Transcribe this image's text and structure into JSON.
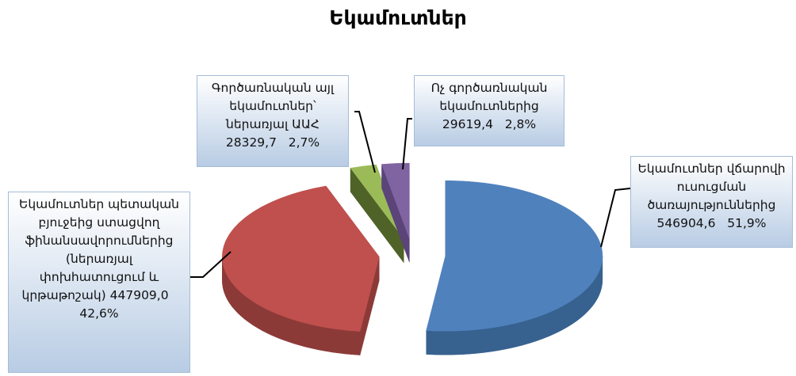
{
  "chart_data": {
    "type": "pie3d",
    "title": "Եկամուտներ",
    "names": [
      "Եկամուտներ վճարովի ուսուցման ծառայություններից",
      "Եկամուտներ պետական բյուջեից ստացվող ֆինանսավորումներից (ներառյալ փոխհատուցում և կրթաթոշակ)",
      "Գործառնական այլ եկամուտներ՝ ներառյալ ԱԱՀ",
      "Ոչ գործառնական եկամուտներից"
    ],
    "values": [
      546904.6,
      447909.0,
      28329.7,
      29619.4
    ],
    "value_labels": [
      "546904,6",
      "447909,0",
      "28329,7",
      "29619,4"
    ],
    "percents": [
      51.9,
      42.6,
      2.7,
      2.8
    ],
    "percent_labels": [
      "51,9%",
      "42,6%",
      "2,7%",
      "2,8%"
    ],
    "colors": [
      "#4f81bd",
      "#c0504d",
      "#9bbb59",
      "#8064a2"
    ],
    "side_colors": [
      "#37618f",
      "#8c3a38",
      "#4f6228",
      "#5a4478"
    ]
  }
}
